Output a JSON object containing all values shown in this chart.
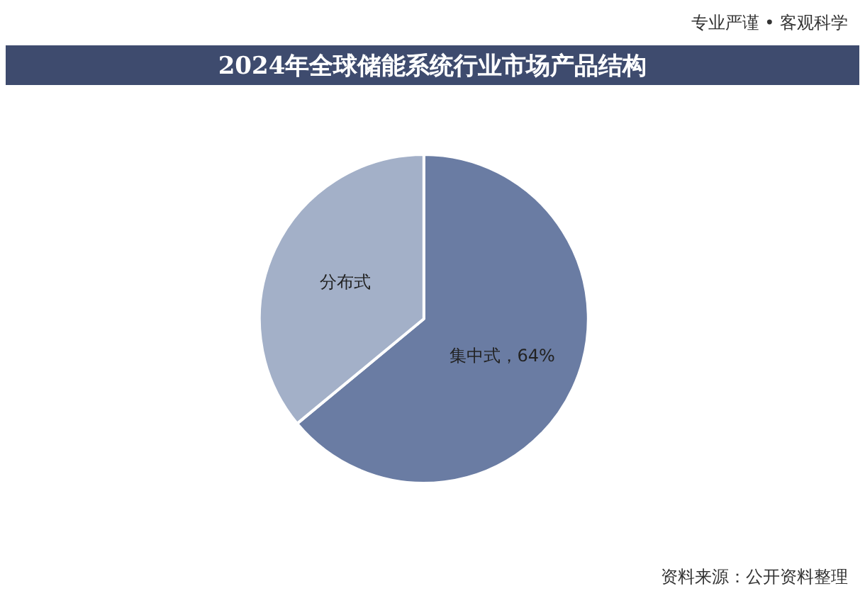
{
  "chart_data": {
    "type": "pie",
    "title": "2024年全球储能系统行业市场产品结构",
    "categories": [
      "集中式",
      "分布式"
    ],
    "values": [
      64,
      36
    ],
    "colors": [
      "#6a7ca3",
      "#a3b0c8"
    ],
    "value_labels": [
      "64%",
      null
    ],
    "legend": false,
    "annotations": [
      "专业严谨 • 客观科学",
      "资料来源：公开资料整理"
    ]
  }
}
